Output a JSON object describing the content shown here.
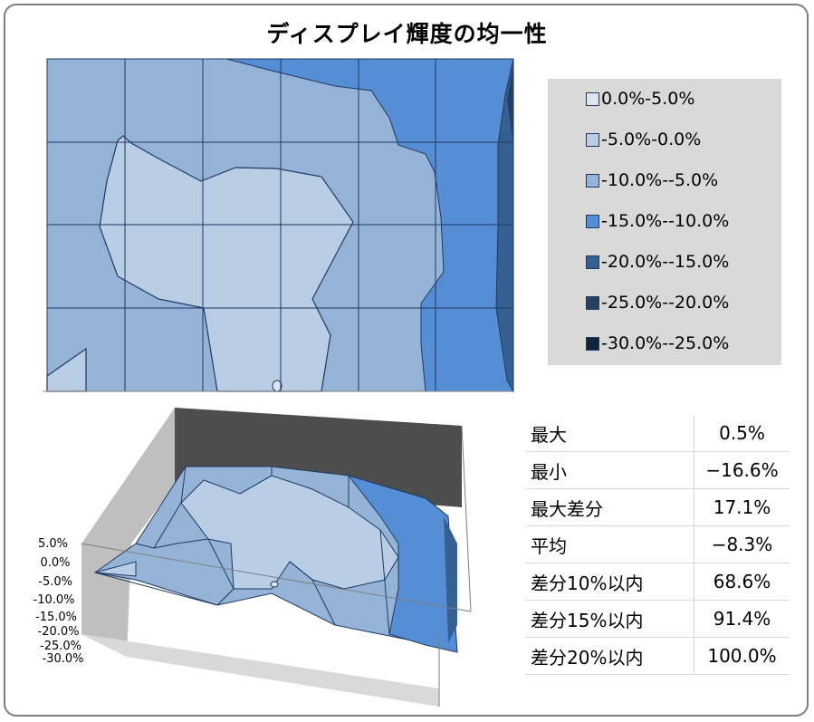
{
  "chart_title": "ディスプレイ輝度の均一性",
  "chart_data": [
    {
      "type": "heatmap",
      "view": "contour-top",
      "grid_rows": 4,
      "grid_cols": 6,
      "legend": [
        {
          "label": "0.0%-5.0%",
          "color": "#dce6f2"
        },
        {
          "label": "-5.0%-0.0%",
          "color": "#b9cde5"
        },
        {
          "label": "-10.0%--5.0%",
          "color": "#95b3d7"
        },
        {
          "label": "-15.0%--10.0%",
          "color": "#558ed5"
        },
        {
          "label": "-20.0%--15.0%",
          "color": "#366092"
        },
        {
          "label": "-25.0%--20.0%",
          "color": "#254061"
        },
        {
          "label": "-30.0%--25.0%",
          "color": "#0f243e"
        }
      ]
    },
    {
      "type": "area",
      "view": "3d-surface",
      "z_ticks": [
        "5.0%",
        "0.0%",
        "-5.0%",
        "-10.0%",
        "-15.0%",
        "-20.0%",
        "-25.0%",
        "-30.0%"
      ],
      "zlim": [
        -30.0,
        5.0
      ]
    }
  ],
  "stats": [
    {
      "label": "最大",
      "value": "0.5%"
    },
    {
      "label": "最小",
      "value": "−16.6%"
    },
    {
      "label": "最大差分",
      "value": "17.1%"
    },
    {
      "label": "平均",
      "value": "−8.3%"
    },
    {
      "label": "差分10%以内",
      "value": "68.6%"
    },
    {
      "label": "差分15%以内",
      "value": "91.4%"
    },
    {
      "label": "差分20%以内",
      "value": "100.0%"
    }
  ]
}
